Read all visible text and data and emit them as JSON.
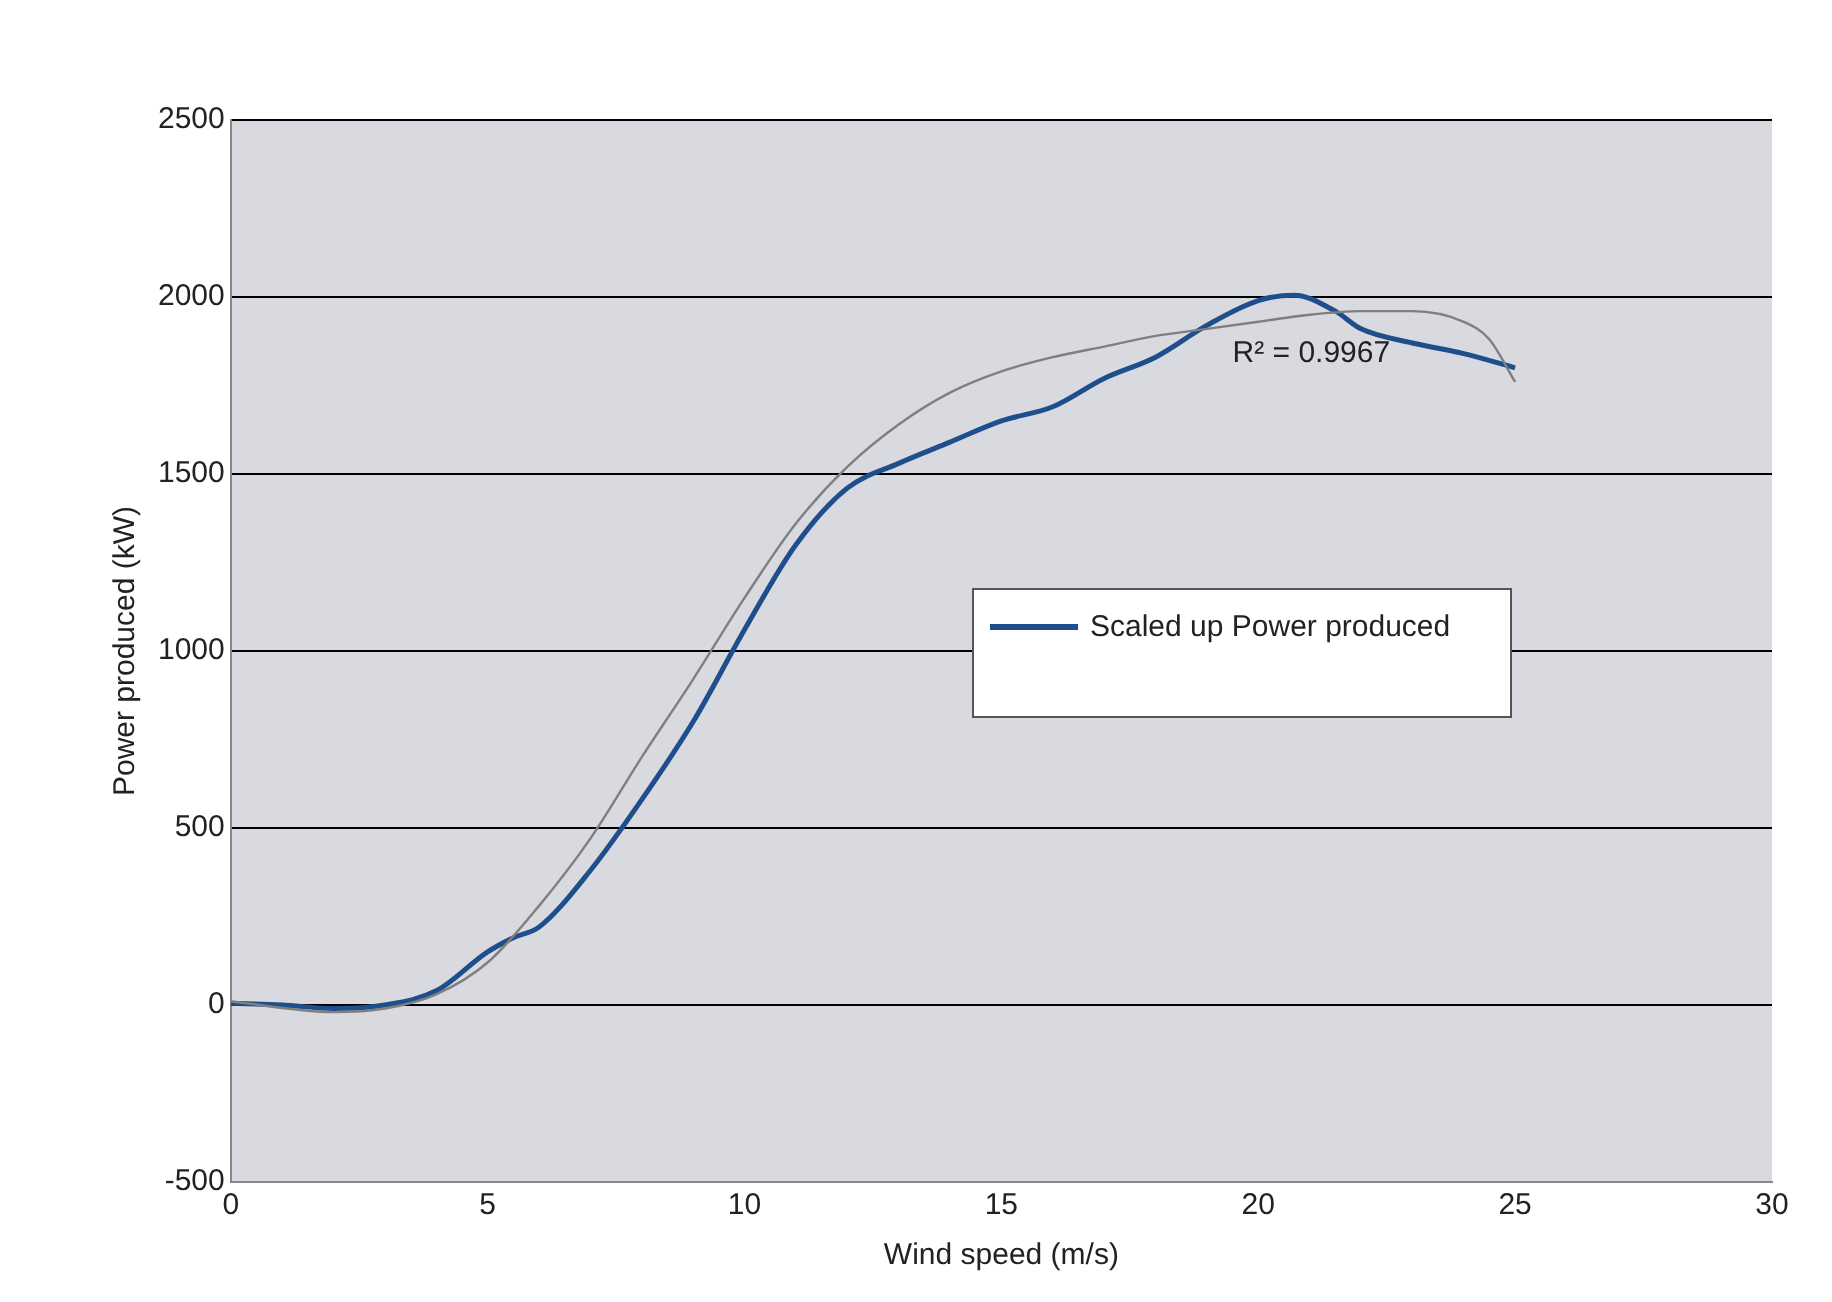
{
  "chart_data": {
    "type": "line",
    "xlabel": "Wind speed (m/s)",
    "ylabel": "Power produced (kW)",
    "xlim": [
      0,
      30
    ],
    "xticks": [
      0,
      5,
      10,
      15,
      20,
      25,
      30
    ],
    "ylim": [
      -500,
      2500
    ],
    "yticks": [
      -500,
      0,
      500,
      1000,
      1500,
      2000,
      2500
    ],
    "grid": "y",
    "legend": "right",
    "marker": "none",
    "line_style": "solid",
    "annotations": [
      "R² = 0.9967"
    ],
    "series": [
      {
        "name": "Scaled up Power produced",
        "color": "#1f4e8c",
        "x": [
          0,
          1,
          2,
          3,
          4,
          5,
          5.5,
          6,
          7,
          8,
          9,
          10,
          11,
          12,
          13,
          14,
          15,
          16,
          17,
          18,
          19,
          20,
          20.7,
          21.5,
          22,
          23,
          24,
          25
        ],
        "values": [
          5,
          0,
          -10,
          0,
          40,
          150,
          190,
          220,
          380,
          580,
          800,
          1060,
          1300,
          1460,
          1530,
          1590,
          1650,
          1690,
          1770,
          1830,
          1920,
          1990,
          2005,
          1960,
          1910,
          1870,
          1840,
          1800
        ]
      },
      {
        "type": "line",
        "color": "#7f7f7f",
        "x": [
          0,
          2,
          3,
          4,
          5,
          6,
          7,
          8,
          9,
          10,
          11,
          12,
          13,
          14,
          15,
          16,
          17,
          18,
          19,
          20,
          21,
          22,
          23,
          24,
          24.5,
          25
        ],
        "values": [
          10,
          -20,
          -10,
          30,
          120,
          280,
          470,
          700,
          920,
          1150,
          1360,
          1520,
          1640,
          1730,
          1790,
          1830,
          1860,
          1890,
          1910,
          1930,
          1950,
          1960,
          1960,
          1930,
          1880,
          1760
        ]
      }
    ]
  }
}
